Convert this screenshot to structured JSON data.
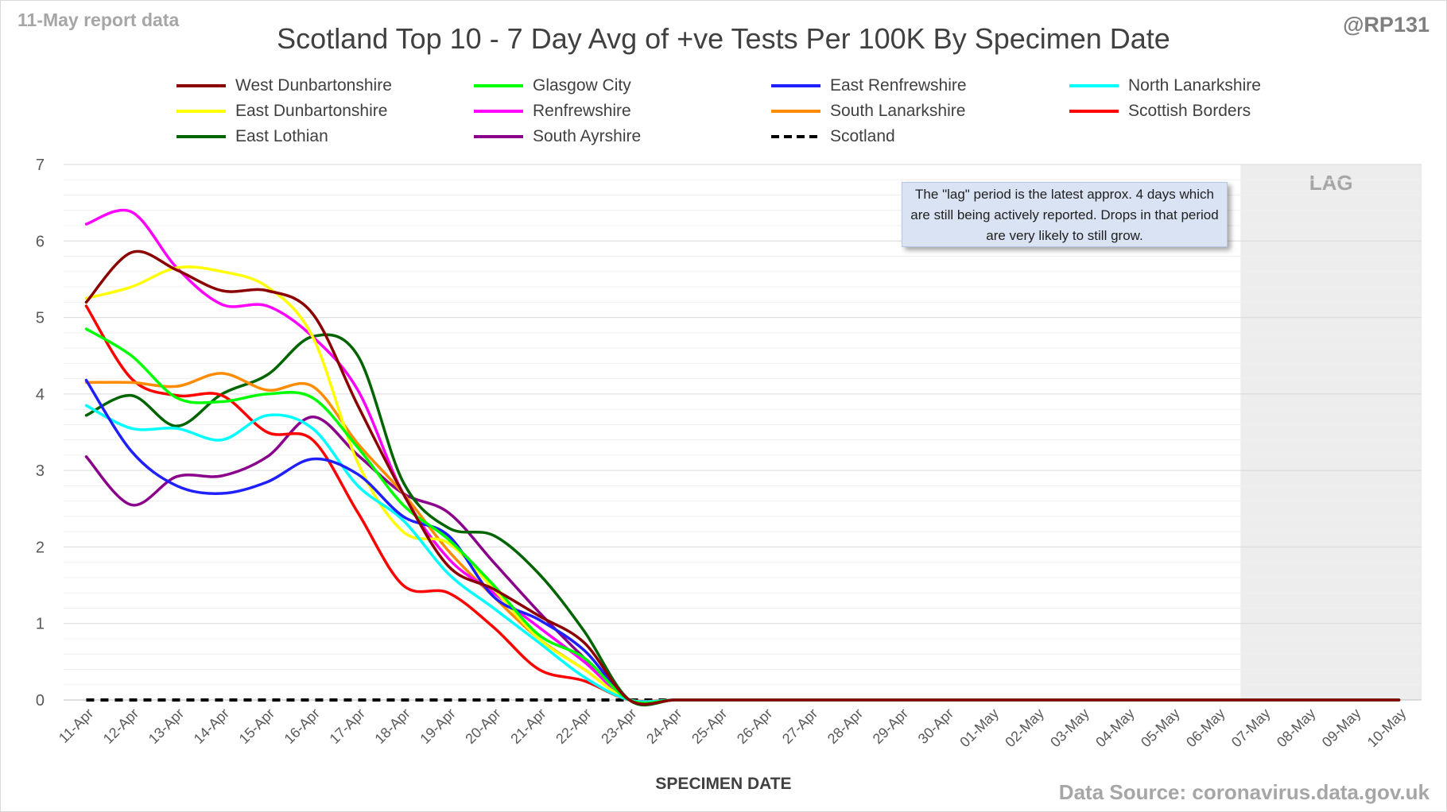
{
  "header": {
    "report_label": "11-May report data",
    "handle": "@RP131",
    "source": "Data Source: coronavirus.data.gov.uk"
  },
  "annotation": {
    "lag_label": "LAG",
    "note": "The \"lag\" period is the latest approx. 4 days which are still being actively reported. Drops in that period are very likely to still grow."
  },
  "chart_data": {
    "type": "line",
    "title": "Scotland Top 10 - 7 Day Avg of +ve Tests Per 100K By Specimen Date",
    "xlabel": "SPECIMEN DATE",
    "ylabel": "",
    "ylim": [
      0,
      7
    ],
    "yticks": [
      0,
      1,
      2,
      3,
      4,
      5,
      6,
      7
    ],
    "grid": true,
    "legend_position": "top",
    "lag_range": [
      "07-May",
      "10-May"
    ],
    "categories": [
      "11-Apr",
      "12-Apr",
      "13-Apr",
      "14-Apr",
      "15-Apr",
      "16-Apr",
      "17-Apr",
      "18-Apr",
      "19-Apr",
      "20-Apr",
      "21-Apr",
      "22-Apr",
      "23-Apr",
      "24-Apr",
      "25-Apr",
      "26-Apr",
      "27-Apr",
      "28-Apr",
      "29-Apr",
      "30-Apr",
      "01-May",
      "02-May",
      "03-May",
      "04-May",
      "05-May",
      "06-May",
      "07-May",
      "08-May",
      "09-May",
      "10-May"
    ],
    "series": [
      {
        "name": "West Dunbartonshire",
        "color": "#8b0000",
        "dash": false,
        "values": [
          5.2,
          5.85,
          5.62,
          5.35,
          5.35,
          5.05,
          3.85,
          2.7,
          1.75,
          1.45,
          1.1,
          0.75,
          0,
          0,
          0,
          0,
          0,
          0,
          0,
          0,
          0,
          0,
          0,
          0,
          0,
          0,
          0,
          0,
          0,
          0
        ]
      },
      {
        "name": "Glasgow City",
        "color": "#00ff00",
        "dash": false,
        "values": [
          4.85,
          4.5,
          3.95,
          3.9,
          4.0,
          3.95,
          3.3,
          2.55,
          2.1,
          1.5,
          0.85,
          0.55,
          0,
          0,
          0,
          0,
          0,
          0,
          0,
          0,
          0,
          0,
          0,
          0,
          0,
          0,
          0,
          0,
          0,
          0
        ]
      },
      {
        "name": "East Renfrewshire",
        "color": "#1f1fff",
        "dash": false,
        "values": [
          4.18,
          3.25,
          2.8,
          2.7,
          2.85,
          3.15,
          2.95,
          2.4,
          2.15,
          1.35,
          1.05,
          0.65,
          0,
          0,
          0,
          0,
          0,
          0,
          0,
          0,
          0,
          0,
          0,
          0,
          0,
          0,
          0,
          0,
          0,
          0
        ]
      },
      {
        "name": "North Lanarkshire",
        "color": "#00ffff",
        "dash": false,
        "values": [
          3.85,
          3.55,
          3.55,
          3.4,
          3.72,
          3.55,
          2.8,
          2.35,
          1.65,
          1.2,
          0.75,
          0.3,
          0,
          0,
          0,
          0,
          0,
          0,
          0,
          0,
          0,
          0,
          0,
          0,
          0,
          0,
          0,
          0,
          0,
          0
        ]
      },
      {
        "name": "East Dunbartonshire",
        "color": "#ffff00",
        "dash": false,
        "values": [
          5.25,
          5.4,
          5.65,
          5.6,
          5.4,
          4.75,
          3.1,
          2.2,
          2.05,
          1.45,
          0.8,
          0.4,
          0,
          0,
          0,
          0,
          0,
          0,
          0,
          0,
          0,
          0,
          0,
          0,
          0,
          0,
          0,
          0,
          0,
          0
        ]
      },
      {
        "name": "Renfrewshire",
        "color": "#ff00ff",
        "dash": false,
        "values": [
          6.22,
          6.38,
          5.65,
          5.17,
          5.15,
          4.75,
          4.05,
          2.7,
          1.85,
          1.4,
          0.95,
          0.5,
          0,
          0,
          0,
          0,
          0,
          0,
          0,
          0,
          0,
          0,
          0,
          0,
          0,
          0,
          0,
          0,
          0,
          0
        ]
      },
      {
        "name": "South Lanarkshire",
        "color": "#ff8c00",
        "dash": false,
        "values": [
          4.15,
          4.15,
          4.1,
          4.27,
          4.05,
          4.1,
          3.35,
          2.7,
          1.95,
          1.35,
          0.8,
          0.4,
          0,
          0,
          0,
          0,
          0,
          0,
          0,
          0,
          0,
          0,
          0,
          0,
          0,
          0,
          0,
          0,
          0,
          0
        ]
      },
      {
        "name": "Scottish Borders",
        "color": "#ff0000",
        "dash": false,
        "values": [
          5.15,
          4.2,
          3.98,
          3.98,
          3.5,
          3.4,
          2.45,
          1.5,
          1.4,
          0.95,
          0.4,
          0.25,
          0,
          0,
          0,
          0,
          0,
          0,
          0,
          0,
          0,
          0,
          0,
          0,
          0,
          0,
          0,
          0,
          0,
          0
        ]
      },
      {
        "name": "East Lothian",
        "color": "#006400",
        "dash": false,
        "values": [
          3.72,
          3.98,
          3.58,
          4.0,
          4.25,
          4.75,
          4.5,
          2.85,
          2.25,
          2.15,
          1.65,
          0.9,
          0,
          0,
          0,
          0,
          0,
          0,
          0,
          0,
          0,
          0,
          0,
          0,
          0,
          0,
          0,
          0,
          0,
          0
        ]
      },
      {
        "name": "South Ayrshire",
        "color": "#8b008b",
        "dash": false,
        "values": [
          3.18,
          2.55,
          2.92,
          2.93,
          3.18,
          3.7,
          3.2,
          2.7,
          2.45,
          1.8,
          1.15,
          0.55,
          0,
          0,
          0,
          0,
          0,
          0,
          0,
          0,
          0,
          0,
          0,
          0,
          0,
          0,
          0,
          0,
          0,
          0
        ]
      },
      {
        "name": "Scotland",
        "color": "#000000",
        "dash": true,
        "values": [
          0,
          0,
          0,
          0,
          0,
          0,
          0,
          0,
          0,
          0,
          0,
          0,
          0,
          0,
          0,
          0,
          0,
          0,
          0,
          0,
          0,
          0,
          0,
          0,
          0,
          0,
          0,
          0,
          0,
          0
        ]
      }
    ]
  }
}
